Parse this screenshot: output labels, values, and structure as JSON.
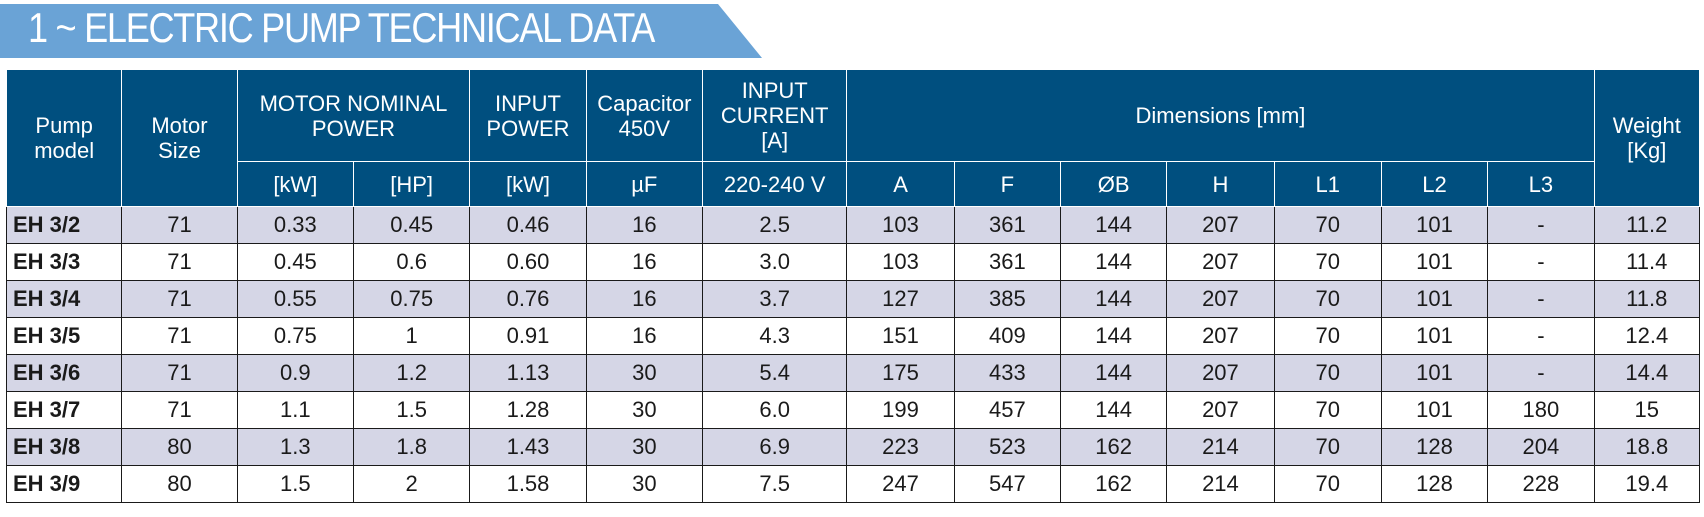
{
  "title": "1 ~ ELECTRIC PUMP TECHNICAL DATA",
  "header": {
    "pump_model": [
      "Pump",
      "model"
    ],
    "motor_size": [
      "Motor",
      "Size"
    ],
    "motor_nominal_power": [
      "MOTOR NOMINAL",
      "POWER"
    ],
    "input_power": [
      "INPUT",
      "POWER"
    ],
    "capacitor": [
      "Capacitor",
      "450V"
    ],
    "input_current": [
      "INPUT",
      "CURRENT",
      "[A]"
    ],
    "dimensions": "Dimensions [mm]",
    "weight": [
      "Weight",
      "[Kg]"
    ],
    "sub": {
      "kw": "[kW]",
      "hp": "[HP]",
      "input_kw": "[kW]",
      "uf": "µF",
      "voltage": "220-240 V",
      "a": "A",
      "f": "F",
      "b": "ØB",
      "h": "H",
      "l1": "L1",
      "l2": "L2",
      "l3": "L3"
    }
  },
  "rows": [
    [
      "EH 3/2",
      "71",
      "0.33",
      "0.45",
      "0.46",
      "16",
      "2.5",
      "103",
      "361",
      "144",
      "207",
      "70",
      "101",
      "-",
      "11.2"
    ],
    [
      "EH 3/3",
      "71",
      "0.45",
      "0.6",
      "0.60",
      "16",
      "3.0",
      "103",
      "361",
      "144",
      "207",
      "70",
      "101",
      "-",
      "11.4"
    ],
    [
      "EH 3/4",
      "71",
      "0.55",
      "0.75",
      "0.76",
      "16",
      "3.7",
      "127",
      "385",
      "144",
      "207",
      "70",
      "101",
      "-",
      "11.8"
    ],
    [
      "EH 3/5",
      "71",
      "0.75",
      "1",
      "0.91",
      "16",
      "4.3",
      "151",
      "409",
      "144",
      "207",
      "70",
      "101",
      "-",
      "12.4"
    ],
    [
      "EH 3/6",
      "71",
      "0.9",
      "1.2",
      "1.13",
      "30",
      "5.4",
      "175",
      "433",
      "144",
      "207",
      "70",
      "101",
      "-",
      "14.4"
    ],
    [
      "EH 3/7",
      "71",
      "1.1",
      "1.5",
      "1.28",
      "30",
      "6.0",
      "199",
      "457",
      "144",
      "207",
      "70",
      "101",
      "180",
      "15"
    ],
    [
      "EH 3/8",
      "80",
      "1.3",
      "1.8",
      "1.43",
      "30",
      "6.9",
      "223",
      "523",
      "162",
      "214",
      "70",
      "128",
      "204",
      "18.8"
    ],
    [
      "EH 3/9",
      "80",
      "1.5",
      "2",
      "1.58",
      "30",
      "7.5",
      "247",
      "547",
      "162",
      "214",
      "70",
      "128",
      "228",
      "19.4"
    ]
  ],
  "colors": {
    "header_bg": "#004f7f",
    "title_bg": "#6aa3d6",
    "shaded_row": "#d5d6e6"
  }
}
